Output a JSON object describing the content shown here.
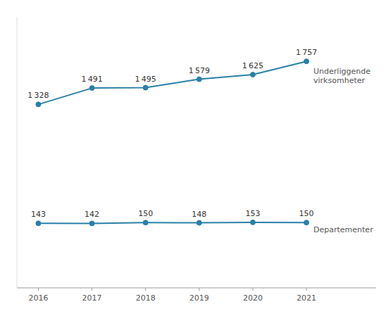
{
  "chart_data": {
    "type": "line",
    "x": [
      2016,
      2017,
      2018,
      2019,
      2020,
      2021
    ],
    "series": [
      {
        "name": "Underliggende\nvirksomheter",
        "color": "#2980a8",
        "values": [
          1328,
          1491,
          1495,
          1579,
          1625,
          1757
        ],
        "value_labels": [
          "1 328",
          "1 491",
          "1 495",
          "1 579",
          "1 625",
          "1 757"
        ]
      },
      {
        "name": "Departementer",
        "color": "#2980a8",
        "values": [
          143,
          142,
          150,
          148,
          153,
          150
        ]
      }
    ],
    "xlim": [
      2015.6,
      2022.3
    ],
    "xticks": [
      2016,
      2017,
      2018,
      2019,
      2020,
      2021
    ],
    "ylim": [
      -500,
      2200
    ],
    "data_labels": true,
    "tick_labels": "x",
    "marker": "circle",
    "grid": false
  }
}
